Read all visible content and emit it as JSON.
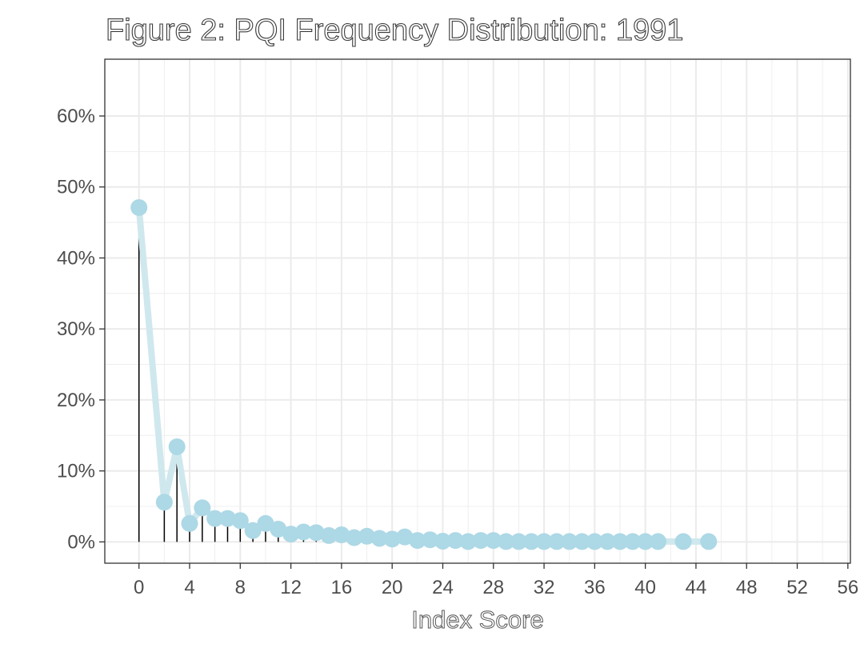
{
  "chart_data": {
    "type": "line",
    "title": "Figure 2: PQI Frequency Distribution: 1991",
    "xlabel": "Index Score",
    "ylabel": "",
    "xlim": [
      -2.7,
      56.2
    ],
    "ylim": [
      -3,
      68
    ],
    "x_ticks": [
      0,
      4,
      8,
      12,
      16,
      20,
      24,
      28,
      32,
      36,
      40,
      44,
      48,
      52,
      56
    ],
    "y_ticks": [
      0,
      10,
      20,
      30,
      40,
      50,
      60
    ],
    "y_tick_labels": [
      "0%",
      "10%",
      "20%",
      "30%",
      "40%",
      "50%",
      "60%"
    ],
    "grid": true,
    "colors": {
      "line": "#cfe8ee",
      "point": "#add8e6",
      "stem": "#000000",
      "grid": "#ebebeb",
      "frame": "#333333"
    },
    "series": [
      {
        "x": [
          0,
          2,
          3,
          4,
          5,
          6,
          7,
          8,
          9,
          10,
          11,
          12,
          13,
          14,
          15,
          16,
          17,
          18,
          19,
          20,
          21,
          22,
          23,
          24,
          25,
          26,
          27,
          28,
          29,
          30,
          31,
          32,
          33,
          34,
          35,
          36,
          37,
          38,
          39,
          40,
          41,
          43,
          45
        ],
        "y": [
          47.1,
          5.6,
          13.4,
          2.6,
          4.8,
          3.3,
          3.3,
          3.0,
          1.6,
          2.6,
          1.8,
          1.1,
          1.4,
          1.3,
          0.9,
          1.0,
          0.6,
          0.8,
          0.5,
          0.4,
          0.7,
          0.2,
          0.3,
          0.1,
          0.2,
          0.05,
          0.2,
          0.2,
          0.05,
          0.05,
          0.05,
          0.05,
          0.05,
          0.05,
          0.05,
          0.05,
          0.05,
          0.05,
          0.05,
          0.05,
          0.05,
          0.05,
          0.05
        ]
      }
    ]
  }
}
